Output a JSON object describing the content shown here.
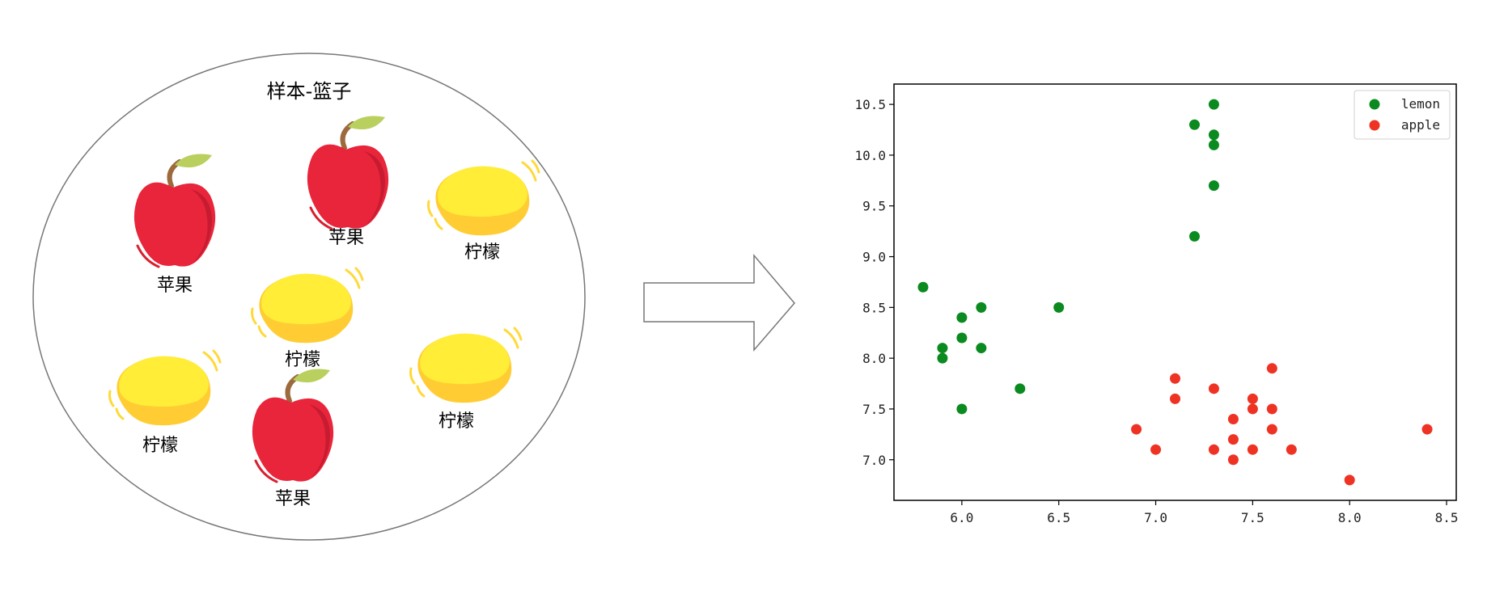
{
  "basket": {
    "title": "样本-篮子",
    "items": [
      {
        "kind": "apple",
        "icon": "apple-icon",
        "label": "苹果"
      },
      {
        "kind": "apple",
        "icon": "apple-icon",
        "label": "苹果"
      },
      {
        "kind": "lemon",
        "icon": "lemon-icon",
        "label": "柠檬"
      },
      {
        "kind": "lemon",
        "icon": "lemon-icon",
        "label": "柠檬"
      },
      {
        "kind": "lemon",
        "icon": "lemon-icon",
        "label": "柠檬"
      },
      {
        "kind": "lemon",
        "icon": "lemon-icon",
        "label": "柠檬"
      },
      {
        "kind": "apple",
        "icon": "apple-icon",
        "label": "苹果"
      }
    ]
  },
  "arrow": {
    "icon": "right-arrow-icon"
  },
  "colors": {
    "lemon": "#0a8a1f",
    "apple": "#ee3324",
    "apple_body": "#e8253a",
    "lemon_body": "#ffe935"
  },
  "chart_data": {
    "type": "scatter",
    "title": "",
    "xlabel": "",
    "ylabel": "",
    "xlim": [
      5.65,
      8.55
    ],
    "ylim": [
      6.6,
      10.7
    ],
    "x_ticks": [
      "6.0",
      "6.5",
      "7.0",
      "7.5",
      "8.0",
      "8.5"
    ],
    "y_ticks": [
      "7.0",
      "7.5",
      "8.0",
      "8.5",
      "9.0",
      "9.5",
      "10.0",
      "10.5"
    ],
    "grid": false,
    "legend_position": "top-right",
    "series": [
      {
        "name": "lemon",
        "color": "#0a8a1f",
        "points": [
          [
            5.8,
            8.7
          ],
          [
            5.9,
            8.1
          ],
          [
            5.9,
            8.0
          ],
          [
            6.0,
            8.4
          ],
          [
            6.0,
            8.2
          ],
          [
            6.0,
            7.5
          ],
          [
            6.1,
            8.5
          ],
          [
            6.1,
            8.1
          ],
          [
            6.3,
            7.7
          ],
          [
            6.5,
            8.5
          ],
          [
            7.2,
            10.3
          ],
          [
            7.2,
            9.2
          ],
          [
            7.3,
            10.5
          ],
          [
            7.3,
            10.2
          ],
          [
            7.3,
            10.1
          ],
          [
            7.3,
            9.7
          ]
        ]
      },
      {
        "name": "apple",
        "color": "#ee3324",
        "points": [
          [
            6.9,
            7.3
          ],
          [
            7.0,
            7.1
          ],
          [
            7.1,
            7.8
          ],
          [
            7.1,
            7.6
          ],
          [
            7.3,
            7.7
          ],
          [
            7.3,
            7.1
          ],
          [
            7.4,
            7.4
          ],
          [
            7.4,
            7.2
          ],
          [
            7.4,
            7.0
          ],
          [
            7.5,
            7.6
          ],
          [
            7.5,
            7.5
          ],
          [
            7.5,
            7.1
          ],
          [
            7.6,
            7.9
          ],
          [
            7.6,
            7.5
          ],
          [
            7.6,
            7.3
          ],
          [
            7.7,
            7.1
          ],
          [
            8.0,
            6.8
          ],
          [
            8.4,
            7.3
          ]
        ]
      }
    ]
  }
}
